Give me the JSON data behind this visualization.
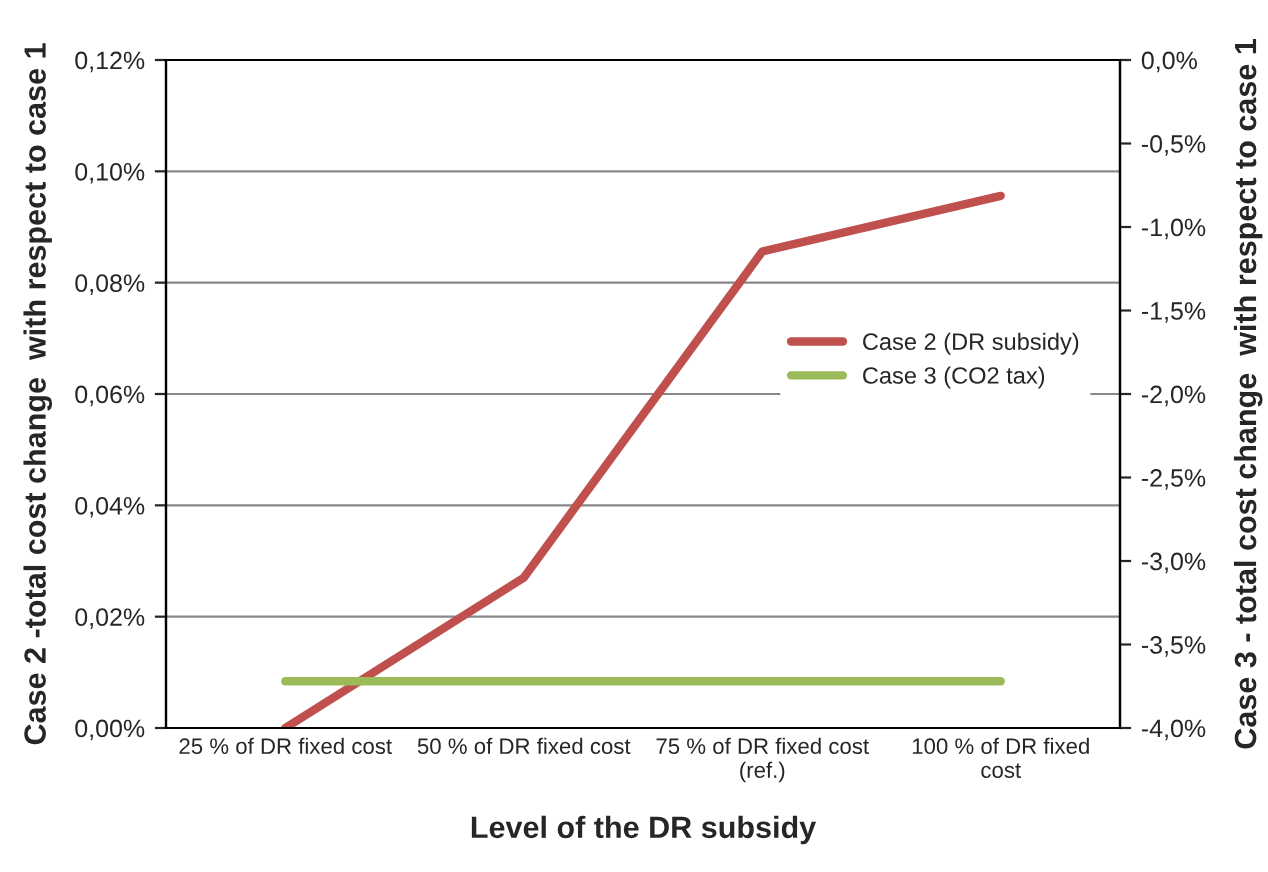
{
  "chart_data": {
    "type": "line",
    "xlabel": "Level of the DR subsidy",
    "ylabel": "Case 2 -total cost change  with respect to case 1",
    "y2label": "Case 3 - total cost change  with respect to case 1",
    "categories": [
      "25 % of DR fixed cost",
      "50 % of DR fixed cost",
      "75 % of DR fixed cost\n(ref.)",
      "100 % of DR fixed\ncost"
    ],
    "series": [
      {
        "name": "Case 2 (DR subsidy)",
        "color": "#c0504d",
        "values": [
          0.0,
          0.027,
          0.0856,
          0.0956
        ]
      },
      {
        "name": "Case 3 (CO2 tax)",
        "color": "#9bbb59",
        "axis": "y2",
        "values": [
          -3.72,
          -3.72,
          -3.72,
          -3.72
        ]
      }
    ],
    "ylim": [
      0,
      0.12
    ],
    "yticks": [
      {
        "value": 0,
        "label": "0,00%"
      },
      {
        "value": 0.02,
        "label": "0,02%"
      },
      {
        "value": 0.04,
        "label": "0,04%"
      },
      {
        "value": 0.06,
        "label": "0,06%"
      },
      {
        "value": 0.08,
        "label": "0,08%"
      },
      {
        "value": 0.1,
        "label": "0,10%"
      },
      {
        "value": 0.12,
        "label": "0,12%"
      }
    ],
    "y2lim": [
      -4,
      0
    ],
    "y2ticks": [
      {
        "value": -4,
        "label": "-4,0%"
      },
      {
        "value": -3.5,
        "label": "-3,5%"
      },
      {
        "value": -3,
        "label": "-3,0%"
      },
      {
        "value": -2.5,
        "label": "-2,5%"
      },
      {
        "value": -2,
        "label": "-2,0%"
      },
      {
        "value": -1.5,
        "label": "-1,5%"
      },
      {
        "value": -1,
        "label": "-1,0%"
      },
      {
        "value": -0.5,
        "label": "-0,5%"
      },
      {
        "value": 0,
        "label": "0,0%"
      }
    ],
    "grid": "y",
    "legend": "right",
    "marker": "none",
    "line_style": "solid"
  }
}
